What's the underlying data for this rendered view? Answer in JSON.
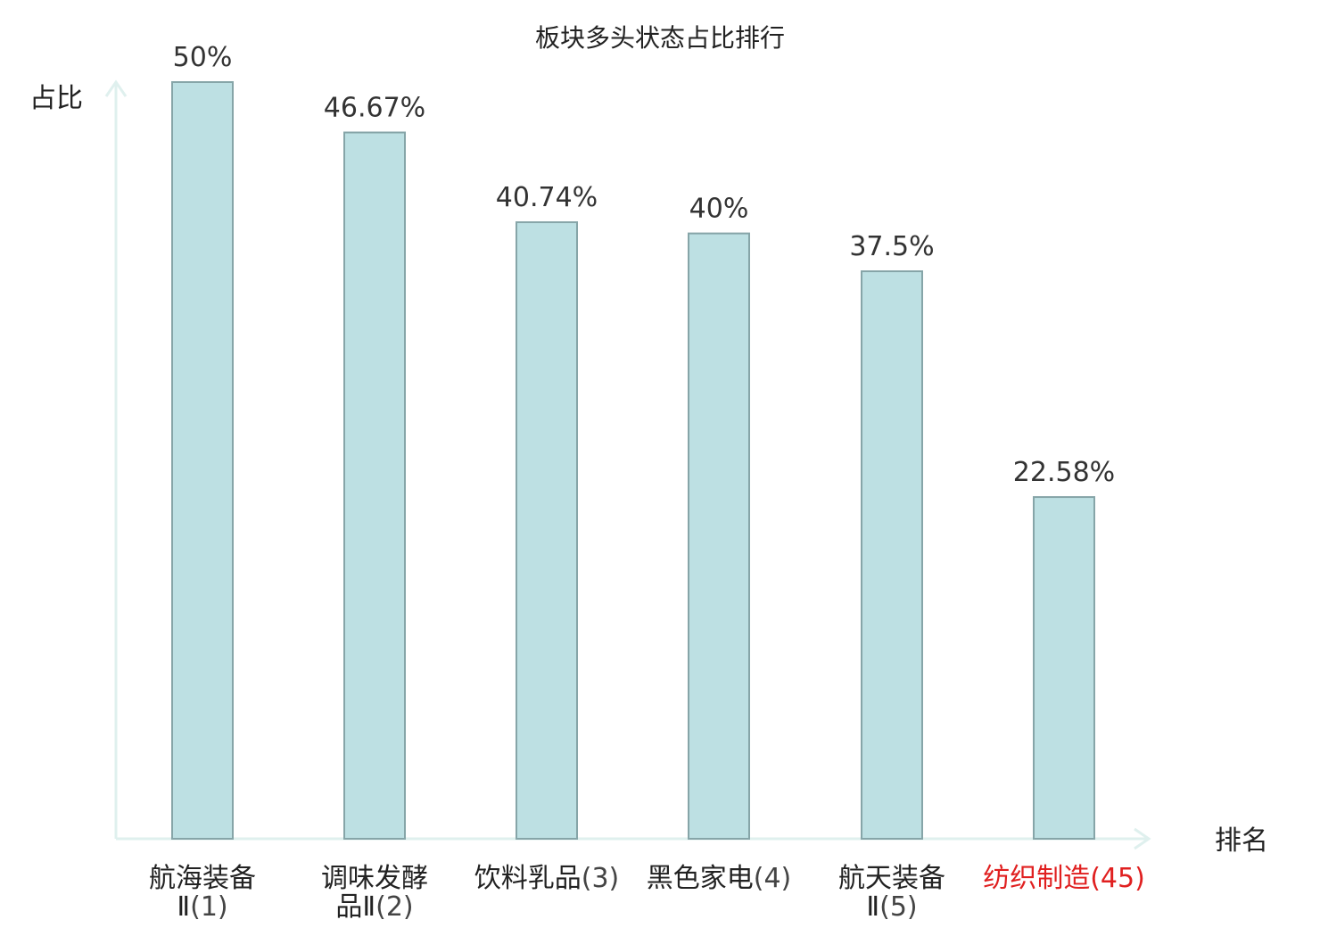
{
  "chart_data": {
    "type": "bar",
    "title": "板块多头状态占比排行",
    "xlabel": "排名",
    "ylabel": "占比",
    "ylim": [
      0,
      50
    ],
    "grid": false,
    "categories": [
      {
        "name": "航海装备Ⅱ",
        "rank": "(1)",
        "highlight": false
      },
      {
        "name": "调味发酵品Ⅱ",
        "rank": "(2)",
        "highlight": false
      },
      {
        "name": "饮料乳品",
        "rank": "(3)",
        "highlight": false
      },
      {
        "name": "黑色家电",
        "rank": "(4)",
        "highlight": false
      },
      {
        "name": "航天装备Ⅱ",
        "rank": "(5)",
        "highlight": false
      },
      {
        "name": "纺织制造",
        "rank": "(45)",
        "highlight": true
      }
    ],
    "values": [
      50,
      46.67,
      40.74,
      40,
      37.5,
      22.58
    ],
    "value_labels": [
      "50%",
      "46.67%",
      "40.74%",
      "40%",
      "37.5%",
      "22.58%"
    ]
  },
  "colors": {
    "bar_fill": "#bde0e3",
    "bar_stroke": "#86a5a8",
    "axis": "#dff0ee",
    "text": "#222222",
    "rank_text": "#444444",
    "highlight": "#e02020"
  }
}
